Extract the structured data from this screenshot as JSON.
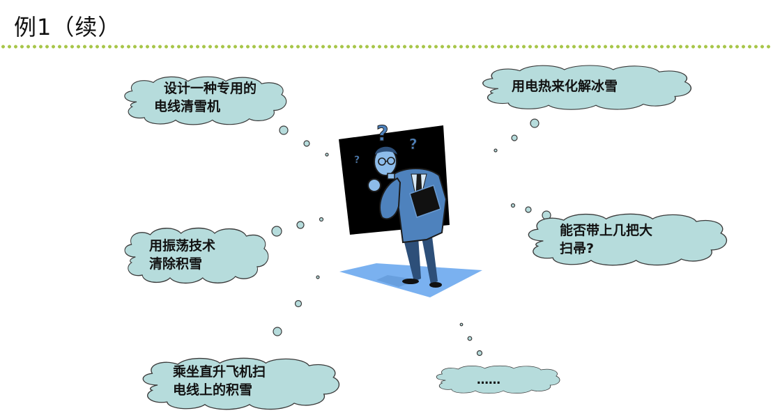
{
  "slide": {
    "title": "例1（续）"
  },
  "colors": {
    "cloud_fill": "#b6dcdc",
    "cloud_stroke": "#3a3a3a",
    "accent_rule": "#a8c64a",
    "board": "#000000",
    "floor": "#7ab1f0"
  },
  "clouds": [
    {
      "lines": [
        "设计一种专用的",
        "电线清雪机"
      ]
    },
    {
      "lines": [
        "用电热来化解冰雪"
      ]
    },
    {
      "lines": [
        "用振荡技术",
        "清除积雪"
      ]
    },
    {
      "lines": [
        "能否带上几把大",
        "扫帚?"
      ]
    },
    {
      "lines": [
        "乘坐直升飞机扫",
        "电线上的积雪"
      ]
    },
    {
      "lines": [
        "……"
      ]
    }
  ],
  "illustration": {
    "icon": "thinking-man-icon",
    "question_marks": [
      "?",
      "?",
      "?"
    ]
  }
}
